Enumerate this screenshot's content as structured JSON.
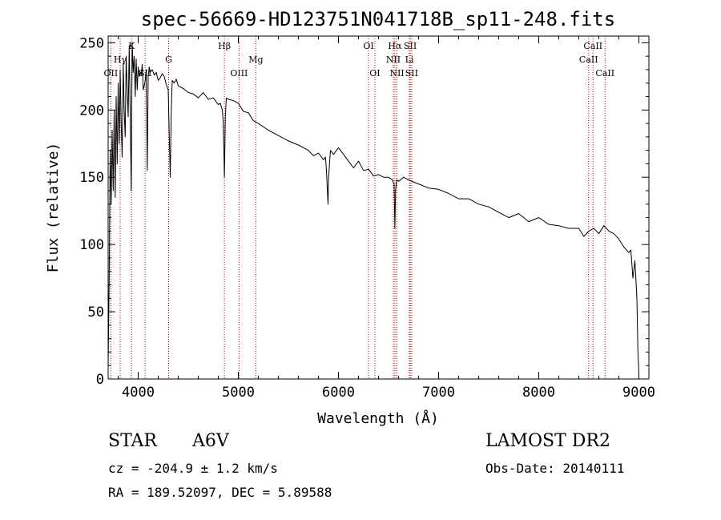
{
  "chart_data": {
    "type": "line",
    "title": "spec-56669-HD123751N041718B_sp11-248.fits",
    "xlabel": "Wavelength (Å)",
    "ylabel": "Flux (relative)",
    "xlim": [
      3700,
      9100
    ],
    "ylim": [
      0,
      255
    ],
    "xticks": [
      4000,
      5000,
      6000,
      7000,
      8000,
      9000
    ],
    "yticks": [
      0,
      50,
      100,
      150,
      200,
      250
    ],
    "grid": false,
    "series": [
      {
        "name": "flux",
        "x": [
          3700,
          3710,
          3720,
          3730,
          3740,
          3750,
          3760,
          3770,
          3780,
          3790,
          3800,
          3810,
          3820,
          3830,
          3840,
          3850,
          3860,
          3870,
          3880,
          3890,
          3900,
          3910,
          3920,
          3930,
          3940,
          3950,
          3960,
          3970,
          3980,
          3990,
          4000,
          4010,
          4020,
          4030,
          4040,
          4050,
          4060,
          4070,
          4080,
          4090,
          4100,
          4110,
          4120,
          4140,
          4160,
          4180,
          4200,
          4220,
          4240,
          4260,
          4280,
          4300,
          4310,
          4320,
          4330,
          4340,
          4350,
          4360,
          4380,
          4400,
          4450,
          4500,
          4550,
          4600,
          4650,
          4700,
          4750,
          4800,
          4820,
          4840,
          4850,
          4861,
          4870,
          4880,
          4900,
          4950,
          5000,
          5050,
          5100,
          5150,
          5200,
          5300,
          5400,
          5500,
          5600,
          5700,
          5750,
          5800,
          5850,
          5870,
          5880,
          5890,
          5896,
          5900,
          5910,
          5920,
          5950,
          6000,
          6050,
          6100,
          6150,
          6200,
          6250,
          6300,
          6350,
          6400,
          6450,
          6500,
          6540,
          6555,
          6563,
          6570,
          6580,
          6600,
          6650,
          6700,
          6800,
          6900,
          7000,
          7100,
          7200,
          7300,
          7400,
          7500,
          7600,
          7700,
          7800,
          7900,
          8000,
          8100,
          8200,
          8300,
          8400,
          8450,
          8500,
          8550,
          8600,
          8650,
          8700,
          8750,
          8800,
          8850,
          8900,
          8920,
          8940,
          8960,
          8980,
          8990,
          9000
        ],
        "y": [
          10,
          75,
          170,
          130,
          185,
          140,
          200,
          135,
          210,
          160,
          220,
          175,
          230,
          190,
          165,
          235,
          200,
          180,
          240,
          215,
          195,
          248,
          200,
          140,
          250,
          228,
          240,
          210,
          238,
          215,
          232,
          225,
          228,
          226,
          234,
          215,
          218,
          222,
          230,
          155,
          225,
          232,
          228,
          230,
          226,
          228,
          222,
          224,
          227,
          225,
          219,
          215,
          180,
          150,
          200,
          222,
          221,
          220,
          223,
          218,
          216,
          213,
          212,
          209,
          213,
          208,
          209,
          204,
          205,
          200,
          190,
          150,
          195,
          209,
          208,
          207,
          205,
          199,
          198,
          192,
          190,
          185,
          181,
          177,
          174,
          170,
          166,
          168,
          163,
          165,
          155,
          138,
          130,
          148,
          160,
          170,
          167,
          172,
          167,
          162,
          157,
          162,
          155,
          156,
          151,
          152,
          150,
          150,
          148,
          145,
          112,
          140,
          148,
          147,
          150,
          148,
          145,
          142,
          141,
          138,
          134,
          134,
          130,
          128,
          124,
          120,
          123,
          117,
          120,
          115,
          114,
          112,
          112,
          106,
          110,
          112,
          108,
          114,
          110,
          108,
          104,
          98,
          94,
          96,
          75,
          88,
          60,
          20,
          5
        ]
      }
    ],
    "lines": [
      {
        "name": "OII",
        "x": 3727,
        "label_level": 3
      },
      {
        "name": "Hγ",
        "x": 3820,
        "label_level": 2
      },
      {
        "name": "K",
        "x": 3934,
        "label_level": 1
      },
      {
        "name": "SII",
        "x": 4069,
        "label_level": 3
      },
      {
        "name": "G",
        "x": 4304,
        "label_level": 2
      },
      {
        "name": "Hβ",
        "x": 4861,
        "label_level": 1
      },
      {
        "name": "OIII",
        "x": 5007,
        "label_level": 3
      },
      {
        "name": "Mg",
        "x": 5175,
        "label_level": 2
      },
      {
        "name": "OI",
        "x": 6300,
        "label_level": 1
      },
      {
        "name": "OI",
        "x": 6363,
        "label_level": 3
      },
      {
        "name": "Hα",
        "x": 6563,
        "label_level": 1
      },
      {
        "name": "NII",
        "x": 6548,
        "label_level": 2
      },
      {
        "name": "NII",
        "x": 6584,
        "label_level": 3
      },
      {
        "name": "SII",
        "x": 6717,
        "label_level": 1
      },
      {
        "name": "Li",
        "x": 6708,
        "label_level": 2
      },
      {
        "name": "SII",
        "x": 6731,
        "label_level": 3
      },
      {
        "name": "CaII",
        "x": 8542,
        "label_level": 1
      },
      {
        "name": "CaII",
        "x": 8498,
        "label_level": 2
      },
      {
        "name": "CaII",
        "x": 8662,
        "label_level": 3
      }
    ]
  },
  "info": {
    "class": "STAR",
    "subclass": "A6V",
    "survey": "LAMOST DR2",
    "cz": "cz = -204.9 ± 1.2 km/s",
    "obs_date": "Obs-Date: 20140111",
    "radec": "RA = 189.52097, DEC =   5.89588"
  }
}
